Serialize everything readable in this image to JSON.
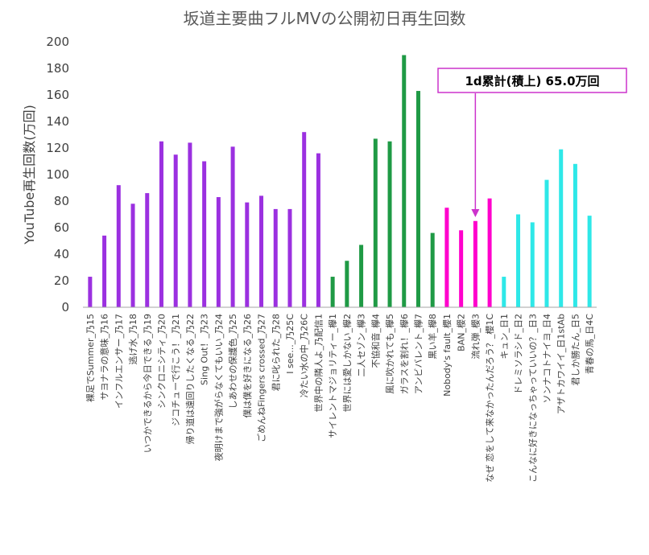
{
  "chart_data": {
    "type": "bar",
    "title": "坂道主要曲フルMVの公開初日再生回数",
    "ylabel": "YouTube再生回数(万回)",
    "xlabel": "",
    "ylim": [
      0,
      200
    ],
    "yticks": [
      0,
      20,
      40,
      60,
      80,
      100,
      120,
      140,
      160,
      180,
      200
    ],
    "grid": false,
    "categories": [
      "裸足でSummer_乃15",
      "サヨナラの意味_乃16",
      "インフルエンサー_乃17",
      "逃げ水_乃18",
      "いつかできるから今日できる_乃19",
      "シンクロニシティ_乃20",
      "ジコチューで行こう！_乃21",
      "帰り道は遠回りしたくなる_乃22",
      "Sing Out！_乃23",
      "夜明けまで強がらなくてもいい_乃24",
      "しあわせの保護色_乃25",
      "僕は僕を好きになる_乃26",
      "ごめんねFingers crossed_乃27",
      "君に叱られた_乃28",
      "I see..._乃25C",
      "冷たい水の中_乃26C",
      "世界中の隣人よ_乃配信1",
      "サイレントマジョリティー_欅1",
      "世界には愛しかない_欅2",
      "二人セゾン_欅3",
      "不協和音_欅4",
      "風に吹かれても_欅5",
      "ガラスを割れ！_欅6",
      "アンビバレント_欅7",
      "黒い羊_欅8",
      "Nobody's fault_櫻1",
      "BAN_櫻2",
      "流れ弾_櫻3",
      "なぜ 恋をして来なかったんだろう？_櫻1C",
      "キュン_日1",
      "ドレミソラシド_日2",
      "こんなに好きになっちゃっていいの？_日3",
      "ソンナコトナイヨ_日4",
      "アザトカワイイ_日1stAb",
      "君しか勝たん_日5",
      "青春の馬_日4C"
    ],
    "values": [
      23,
      54,
      92,
      78,
      86,
      125,
      115,
      124,
      110,
      83,
      121,
      79,
      84,
      74,
      74,
      132,
      116,
      23,
      35,
      47,
      127,
      125,
      190,
      163,
      56,
      75,
      58,
      65,
      82,
      23,
      70,
      64,
      96,
      119,
      108,
      69
    ],
    "groups": [
      {
        "color": "#9b30e0",
        "count": 17
      },
      {
        "color": "#1f9a45",
        "count": 8
      },
      {
        "color": "#ff00cc",
        "count": 4
      },
      {
        "color": "#2ee8e8",
        "count": 7
      }
    ],
    "annotation": {
      "text": "1d累計(積上) 65.0万回",
      "target_index": 27,
      "box_border_color": "#cc33cc",
      "arrow_color": "#cc33cc"
    },
    "axis_color": "#a6a6a6"
  }
}
